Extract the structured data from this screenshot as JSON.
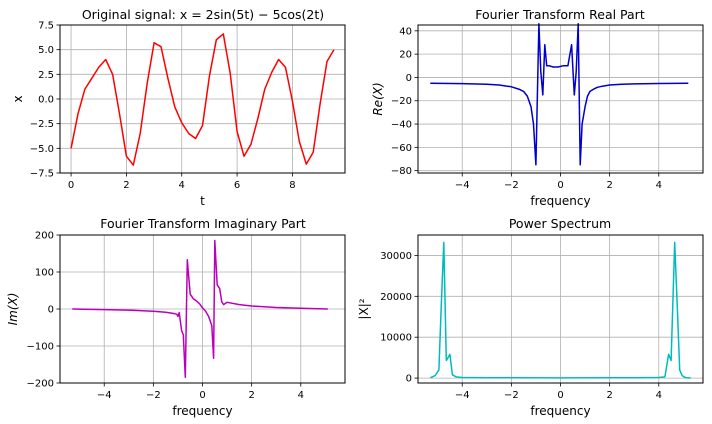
{
  "chart_data": [
    {
      "type": "line",
      "title": "Original signal: x = 2sin(5t) − 5cos(2t)",
      "xlabel": "t",
      "ylabel": "x",
      "xlim": [
        -0.4,
        9.9
      ],
      "ylim": [
        -7.5,
        7.5
      ],
      "xticks": [
        0,
        2,
        4,
        6,
        8
      ],
      "yticks": [
        -7.5,
        -5.0,
        -2.5,
        0.0,
        2.5,
        5.0,
        7.5
      ],
      "ytick_labels": [
        "−7.5",
        "−5.0",
        "−2.5",
        "0.0",
        "2.5",
        "5.0",
        "7.5"
      ],
      "grid": true,
      "color": "#ff0000",
      "x": [
        0,
        0.25,
        0.5,
        0.75,
        1.0,
        1.25,
        1.5,
        1.75,
        2.0,
        2.25,
        2.5,
        2.75,
        3.0,
        3.25,
        3.5,
        3.75,
        4.0,
        4.25,
        4.5,
        4.75,
        5.0,
        5.25,
        5.5,
        5.75,
        6.0,
        6.25,
        6.5,
        6.75,
        7.0,
        7.25,
        7.5,
        7.75,
        8.0,
        8.25,
        8.5,
        8.75,
        9.0,
        9.25,
        9.5
      ],
      "y": [
        -5.0,
        -1.5,
        1.0,
        2.1,
        3.2,
        4.0,
        2.5,
        -1.5,
        -5.8,
        -6.7,
        -3.5,
        1.6,
        5.7,
        5.3,
        2.1,
        -0.8,
        -2.4,
        -3.5,
        -4.0,
        -2.7,
        2.3,
        6.0,
        6.6,
        2.6,
        -3.3,
        -5.8,
        -4.6,
        -2.0,
        1.0,
        2.7,
        4.0,
        3.2,
        -0.2,
        -4.3,
        -6.6,
        -5.4,
        -0.5,
        3.8,
        5.0
      ]
    },
    {
      "type": "line",
      "title": "Fourier Transform Real Part",
      "xlabel": "frequency",
      "ylabel": "Re(X)",
      "xlim": [
        -5.8,
        5.8
      ],
      "ylim": [
        -82,
        45
      ],
      "xticks": [
        -4,
        -2,
        0,
        2,
        4
      ],
      "xtick_labels": [
        "−4",
        "−2",
        "0",
        "2",
        "4"
      ],
      "yticks": [
        -80,
        -60,
        -40,
        -20,
        0,
        20,
        40
      ],
      "ytick_labels": [
        "−80",
        "−60",
        "−40",
        "−20",
        "0",
        "20",
        "40"
      ],
      "grid": true,
      "color": "#0000cc",
      "x": [
        -5.3,
        -4.0,
        -3.0,
        -2.5,
        -2.0,
        -1.7,
        -1.5,
        -1.35,
        -1.2,
        -1.1,
        -1.0,
        -0.88,
        -0.8,
        -0.72,
        -0.64,
        -0.56,
        -0.45,
        -0.3,
        -0.1,
        0.1,
        0.3,
        0.45,
        0.56,
        0.64,
        0.72,
        0.8,
        0.88,
        1.0,
        1.1,
        1.2,
        1.35,
        1.5,
        1.7,
        2.0,
        2.5,
        3.0,
        4.0,
        5.2
      ],
      "y": [
        -5,
        -5.3,
        -5.8,
        -6.5,
        -8,
        -10,
        -12,
        -16,
        -25,
        -40,
        -75,
        46,
        5,
        -15,
        28,
        10,
        10,
        9,
        9,
        10,
        10,
        28,
        -15,
        5,
        46,
        -75,
        -40,
        -25,
        -16,
        -12,
        -10,
        -8.5,
        -7.5,
        -6.5,
        -5.8,
        -5.5,
        -5.2,
        -5
      ]
    },
    {
      "type": "line",
      "title": "Fourier Transform Imaginary Part",
      "xlabel": "frequency",
      "ylabel": "Im(X)",
      "xlim": [
        -5.8,
        5.8
      ],
      "ylim": [
        -200,
        200
      ],
      "xticks": [
        -4,
        -2,
        0,
        2,
        4
      ],
      "xtick_labels": [
        "−4",
        "−2",
        "0",
        "2",
        "4"
      ],
      "yticks": [
        -200,
        -100,
        0,
        100,
        200
      ],
      "ytick_labels": [
        "−200",
        "−100",
        "0",
        "100",
        "200"
      ],
      "grid": true,
      "color": "#bb00bb",
      "x": [
        -5.3,
        -4.0,
        -3.0,
        -2.0,
        -1.5,
        -1.2,
        -1.05,
        -1.0,
        -0.95,
        -0.85,
        -0.78,
        -0.7,
        -0.62,
        -0.5,
        -0.38,
        -0.25,
        -0.12,
        0.0,
        0.12,
        0.25,
        0.38,
        0.45,
        0.5,
        0.6,
        0.7,
        0.78,
        0.86,
        1.0,
        1.5,
        2.0,
        3.0,
        4.0,
        5.1
      ],
      "y": [
        0,
        -1.5,
        -3,
        -6,
        -9,
        -12,
        -14,
        -20,
        -10,
        -58,
        -70,
        -185,
        133,
        40,
        28,
        22,
        14,
        3,
        -5,
        -20,
        -45,
        -133,
        185,
        65,
        55,
        20,
        12,
        18,
        12,
        8,
        4,
        2,
        0
      ]
    },
    {
      "type": "line",
      "title": "Power Spectrum",
      "xlabel": "frequency",
      "ylabel": "|X|²",
      "xlim": [
        -5.8,
        5.8
      ],
      "ylim": [
        -1200,
        35000
      ],
      "xticks": [
        -4,
        -2,
        0,
        2,
        4
      ],
      "xtick_labels": [
        "−4",
        "−2",
        "0",
        "2",
        "4"
      ],
      "yticks": [
        0,
        10000,
        20000,
        30000
      ],
      "ytick_labels": [
        "0",
        "10000",
        "20000",
        "30000"
      ],
      "grid": true,
      "color": "#00bbbb",
      "x": [
        -5.3,
        -5.1,
        -4.95,
        -4.85,
        -4.75,
        -4.65,
        -4.5,
        -4.4,
        -4.25,
        -4.0,
        -3.0,
        -2.0,
        0.0,
        2.0,
        3.0,
        4.0,
        4.25,
        4.4,
        4.5,
        4.65,
        4.75,
        4.85,
        4.95,
        5.1,
        5.3
      ],
      "y": [
        80,
        600,
        2000,
        18000,
        33200,
        4300,
        5800,
        800,
        300,
        150,
        80,
        60,
        40,
        60,
        80,
        150,
        300,
        5800,
        4300,
        33200,
        18000,
        2000,
        600,
        80,
        40
      ]
    }
  ]
}
